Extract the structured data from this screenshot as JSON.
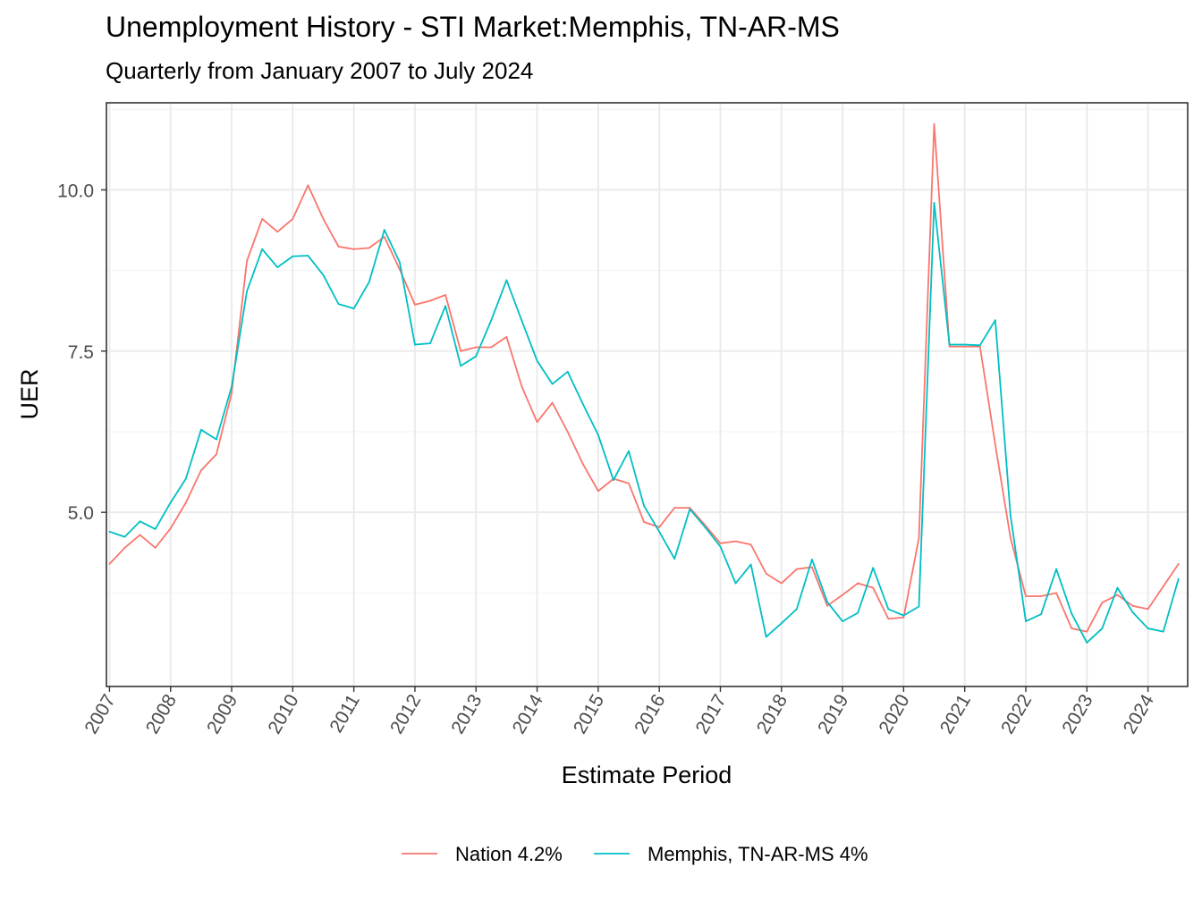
{
  "chart_data": {
    "type": "line",
    "title": "Unemployment History - STI Market:Memphis, TN-AR-MS",
    "subtitle": "Quarterly from January 2007 to July 2024",
    "xlabel": "Estimate Period",
    "ylabel": "UER",
    "xlim": [
      2006.95,
      2024.65
    ],
    "ylim": [
      2.3,
      11.35
    ],
    "y_ticks": [
      5.0,
      7.5,
      10.0
    ],
    "y_tick_labels": [
      "5.0",
      "7.5",
      "10.0"
    ],
    "x_ticks": [
      2007,
      2008,
      2009,
      2010,
      2011,
      2012,
      2013,
      2014,
      2015,
      2016,
      2017,
      2018,
      2019,
      2020,
      2021,
      2022,
      2023,
      2024
    ],
    "x_tick_labels": [
      "2007",
      "2008",
      "2009",
      "2010",
      "2011",
      "2012",
      "2013",
      "2014",
      "2015",
      "2016",
      "2017",
      "2018",
      "2019",
      "2020",
      "2021",
      "2022",
      "2023",
      "2024"
    ],
    "grid": true,
    "legend_position": "bottom",
    "x_start": 2007,
    "x_step": 0.25,
    "series": [
      {
        "name": "Nation 4.2%",
        "color": "#F8766D",
        "values": [
          4.2,
          4.45,
          4.65,
          4.45,
          4.75,
          5.15,
          5.65,
          5.9,
          6.85,
          8.9,
          9.55,
          9.35,
          9.55,
          10.07,
          9.55,
          9.12,
          9.08,
          9.1,
          9.27,
          8.77,
          8.22,
          8.28,
          8.37,
          7.5,
          7.56,
          7.56,
          7.72,
          6.95,
          6.4,
          6.7,
          6.25,
          5.75,
          5.33,
          5.52,
          5.45,
          4.85,
          4.77,
          5.07,
          5.07,
          4.8,
          4.52,
          4.55,
          4.5,
          4.05,
          3.9,
          4.12,
          4.15,
          3.55,
          3.72,
          3.9,
          3.83,
          3.35,
          3.37,
          4.6,
          11.02,
          7.57,
          7.57,
          7.57,
          6.05,
          4.6,
          3.7,
          3.7,
          3.75,
          3.2,
          3.15,
          3.6,
          3.72,
          3.55,
          3.5,
          3.85,
          4.2
        ]
      },
      {
        "name": "Memphis, TN-AR-MS 4%",
        "color": "#00BFC4",
        "values": [
          4.7,
          4.62,
          4.86,
          4.74,
          5.15,
          5.52,
          6.28,
          6.13,
          6.95,
          8.43,
          9.08,
          8.8,
          8.97,
          8.98,
          8.68,
          8.23,
          8.16,
          8.57,
          9.38,
          8.88,
          7.6,
          7.62,
          8.2,
          7.27,
          7.42,
          7.98,
          8.6,
          7.97,
          7.35,
          6.99,
          7.18,
          6.68,
          6.2,
          5.5,
          5.95,
          5.1,
          4.7,
          4.28,
          5.05,
          4.77,
          4.47,
          3.9,
          4.19,
          3.07,
          3.28,
          3.5,
          4.27,
          3.61,
          3.31,
          3.44,
          4.14,
          3.5,
          3.4,
          3.54,
          9.8,
          7.6,
          7.6,
          7.59,
          7.98,
          4.95,
          3.31,
          3.42,
          4.12,
          3.43,
          2.98,
          3.2,
          3.83,
          3.45,
          3.2,
          3.15,
          3.97
        ]
      }
    ]
  }
}
